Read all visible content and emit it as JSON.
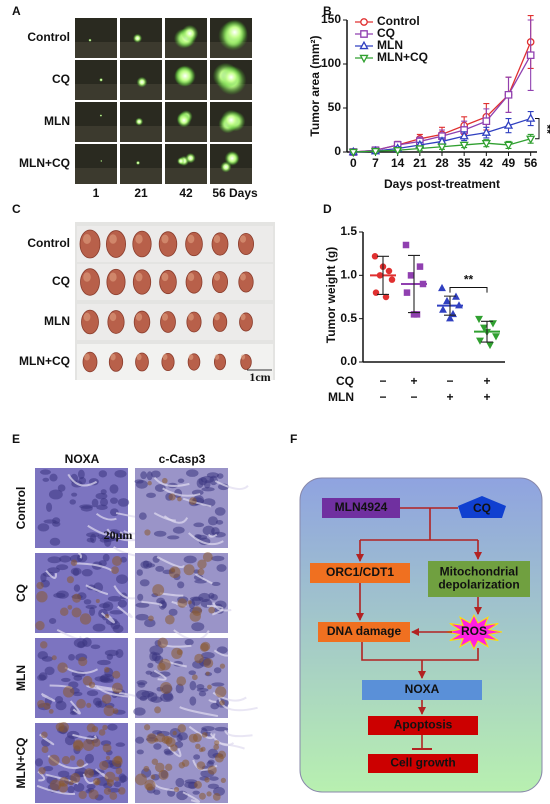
{
  "panel_labels": [
    "A",
    "B",
    "C",
    "D",
    "E",
    "F"
  ],
  "panels": {
    "A": {
      "rows": [
        "Control",
        "CQ",
        "MLN",
        "MLN+CQ"
      ],
      "columns": [
        "1",
        "21",
        "42",
        "56 Days"
      ]
    },
    "C": {
      "rows": [
        "Control",
        "CQ",
        "MLN",
        "MLN+CQ"
      ],
      "scale": "1cm"
    },
    "E": {
      "columns": [
        "NOXA",
        "c-Casp3"
      ],
      "rows": [
        "Control",
        "CQ",
        "MLN",
        "MLN+CQ"
      ],
      "scale": "20μm"
    },
    "F": {
      "nodes": [
        "MLN4924",
        "CQ",
        "ORC1/CDT1",
        [
          "Mitochondrial",
          "depolarization"
        ],
        "DNA damage",
        "ROS",
        "NOXA",
        "Apoptosis",
        "Cell growth"
      ]
    }
  },
  "chart_data": [
    {
      "type": "line",
      "y_label": "Tumor area (mm²)",
      "x_label": "Days post-treatment",
      "x": [
        0,
        7,
        14,
        21,
        28,
        35,
        42,
        49,
        56
      ],
      "xlim": [
        -2,
        58
      ],
      "xticks": [
        0,
        7,
        14,
        21,
        28,
        35,
        42,
        49,
        56
      ],
      "ylim": [
        0,
        150
      ],
      "yticks": [
        0,
        50,
        100,
        150
      ],
      "legend": "top-left",
      "series": [
        {
          "name": "Control",
          "color": "#e03030",
          "marker": "circle",
          "values": [
            0,
            2,
            8,
            15,
            20,
            30,
            40,
            65,
            125
          ],
          "errors": [
            0,
            2,
            4,
            5,
            8,
            10,
            15,
            20,
            30
          ]
        },
        {
          "name": "CQ",
          "color": "#9040b0",
          "marker": "square",
          "values": [
            0,
            2,
            8,
            12,
            18,
            25,
            35,
            65,
            110
          ],
          "errors": [
            0,
            2,
            4,
            5,
            7,
            10,
            14,
            20,
            40
          ]
        },
        {
          "name": "MLN",
          "color": "#3040c0",
          "marker": "triangle-up",
          "values": [
            0,
            1,
            4,
            8,
            12,
            18,
            22,
            30,
            38
          ],
          "errors": [
            0,
            1,
            2,
            3,
            4,
            5,
            6,
            8,
            8
          ]
        },
        {
          "name": "MLN+CQ",
          "color": "#30a030",
          "marker": "triangle-down",
          "values": [
            0,
            1,
            2,
            4,
            6,
            8,
            10,
            8,
            15
          ],
          "errors": [
            0,
            1,
            1,
            2,
            3,
            3,
            4,
            4,
            5
          ]
        }
      ],
      "annotation": "**"
    },
    {
      "type": "dot",
      "y_label": "Tumor weight (g)",
      "ylim": [
        0,
        1.5
      ],
      "yticks": [
        {
          "value": 0,
          "label": "0.0"
        },
        {
          "value": 0.5,
          "label": "0.5"
        },
        {
          "value": 1,
          "label": "1.0"
        },
        {
          "value": 1.5,
          "label": "1.5"
        }
      ],
      "factors": [
        {
          "name": "CQ",
          "levels": [
            "−",
            "+",
            "−",
            "+"
          ]
        },
        {
          "name": "MLN",
          "levels": [
            "−",
            "−",
            "+",
            "+"
          ]
        }
      ],
      "groups": [
        {
          "color": "#e03030",
          "marker": "circle",
          "points": [
            1.22,
            1.05,
            1.0,
            0.95,
            0.8,
            0.75,
            1.1
          ],
          "mean": 1.0,
          "sd": 0.22
        },
        {
          "color": "#9040b0",
          "marker": "square",
          "points": [
            1.35,
            1.1,
            1.0,
            0.9,
            0.8,
            0.55,
            0.55
          ],
          "mean": 0.9,
          "sd": 0.33
        },
        {
          "color": "#3040c0",
          "marker": "triangle-up",
          "points": [
            0.85,
            0.75,
            0.7,
            0.65,
            0.6,
            0.55,
            0.5
          ],
          "mean": 0.65,
          "sd": 0.11
        },
        {
          "color": "#30a030",
          "marker": "triangle-down",
          "points": [
            0.5,
            0.45,
            0.4,
            0.3,
            0.25,
            0.2,
            0.35
          ],
          "mean": 0.35,
          "sd": 0.12
        }
      ],
      "annotation": "**"
    }
  ]
}
